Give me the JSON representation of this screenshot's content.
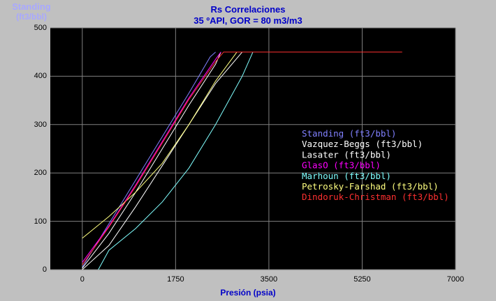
{
  "chart_data": {
    "type": "line",
    "title": "Rs Correlaciones",
    "subtitle": "35 ºAPI, GOR = 80 m3/m3",
    "ylabel": [
      "Standing",
      "(ft3/bbl)"
    ],
    "xlabel": "Presión (psia)",
    "xlim": [
      -600,
      7000
    ],
    "ylim": [
      0,
      500
    ],
    "x_ticks": [
      0,
      1750,
      3500,
      5250,
      7000
    ],
    "y_ticks": [
      0,
      100,
      200,
      300,
      400,
      500
    ],
    "grid": true,
    "legend_position": "middle-right",
    "series": [
      {
        "name": "Standing (ft3/bbl)",
        "color": "#8080ff",
        "x": [
          0,
          500,
          1000,
          1500,
          2000,
          2400,
          2500
        ],
        "y": [
          5,
          95,
          185,
          275,
          365,
          440,
          450
        ]
      },
      {
        "name": "Vazquez-Beggs (ft3/bbl)",
        "color": "#ffffff",
        "x": [
          0,
          500,
          1000,
          1500,
          2000,
          2500,
          2600
        ],
        "y": [
          3,
          75,
          160,
          250,
          340,
          425,
          450
        ]
      },
      {
        "name": "Lasater (ft3/bbl)",
        "color": "#ffffff",
        "x": [
          0,
          500,
          1000,
          1500,
          2000,
          2500,
          3000
        ],
        "y": [
          0,
          50,
          130,
          215,
          300,
          385,
          450
        ]
      },
      {
        "name": "GlasO (ft3/bbl)",
        "color": "#ff00ff",
        "x": [
          0,
          500,
          1000,
          1500,
          2000,
          2500,
          2600
        ],
        "y": [
          15,
          90,
          175,
          265,
          355,
          435,
          450
        ]
      },
      {
        "name": "Marhoun (ft3/bbl)",
        "color": "#80ffff",
        "x": [
          300,
          500,
          1000,
          1500,
          2000,
          2500,
          3000,
          3200
        ],
        "y": [
          0,
          40,
          85,
          140,
          210,
          300,
          400,
          450
        ]
      },
      {
        "name": "Petrosky-Farshad (ft3/bbl)",
        "color": "#ffff80",
        "x": [
          0,
          500,
          1000,
          1500,
          2000,
          2500,
          2900
        ],
        "y": [
          65,
          110,
          160,
          220,
          300,
          390,
          450
        ]
      },
      {
        "name": "Dindoruk-Christman (ft3/bbl)",
        "color": "#ff3030",
        "x": [
          0,
          500,
          1000,
          1500,
          2000,
          2500,
          2650,
          6000
        ],
        "y": [
          10,
          88,
          172,
          262,
          352,
          430,
          450,
          450
        ]
      }
    ]
  }
}
